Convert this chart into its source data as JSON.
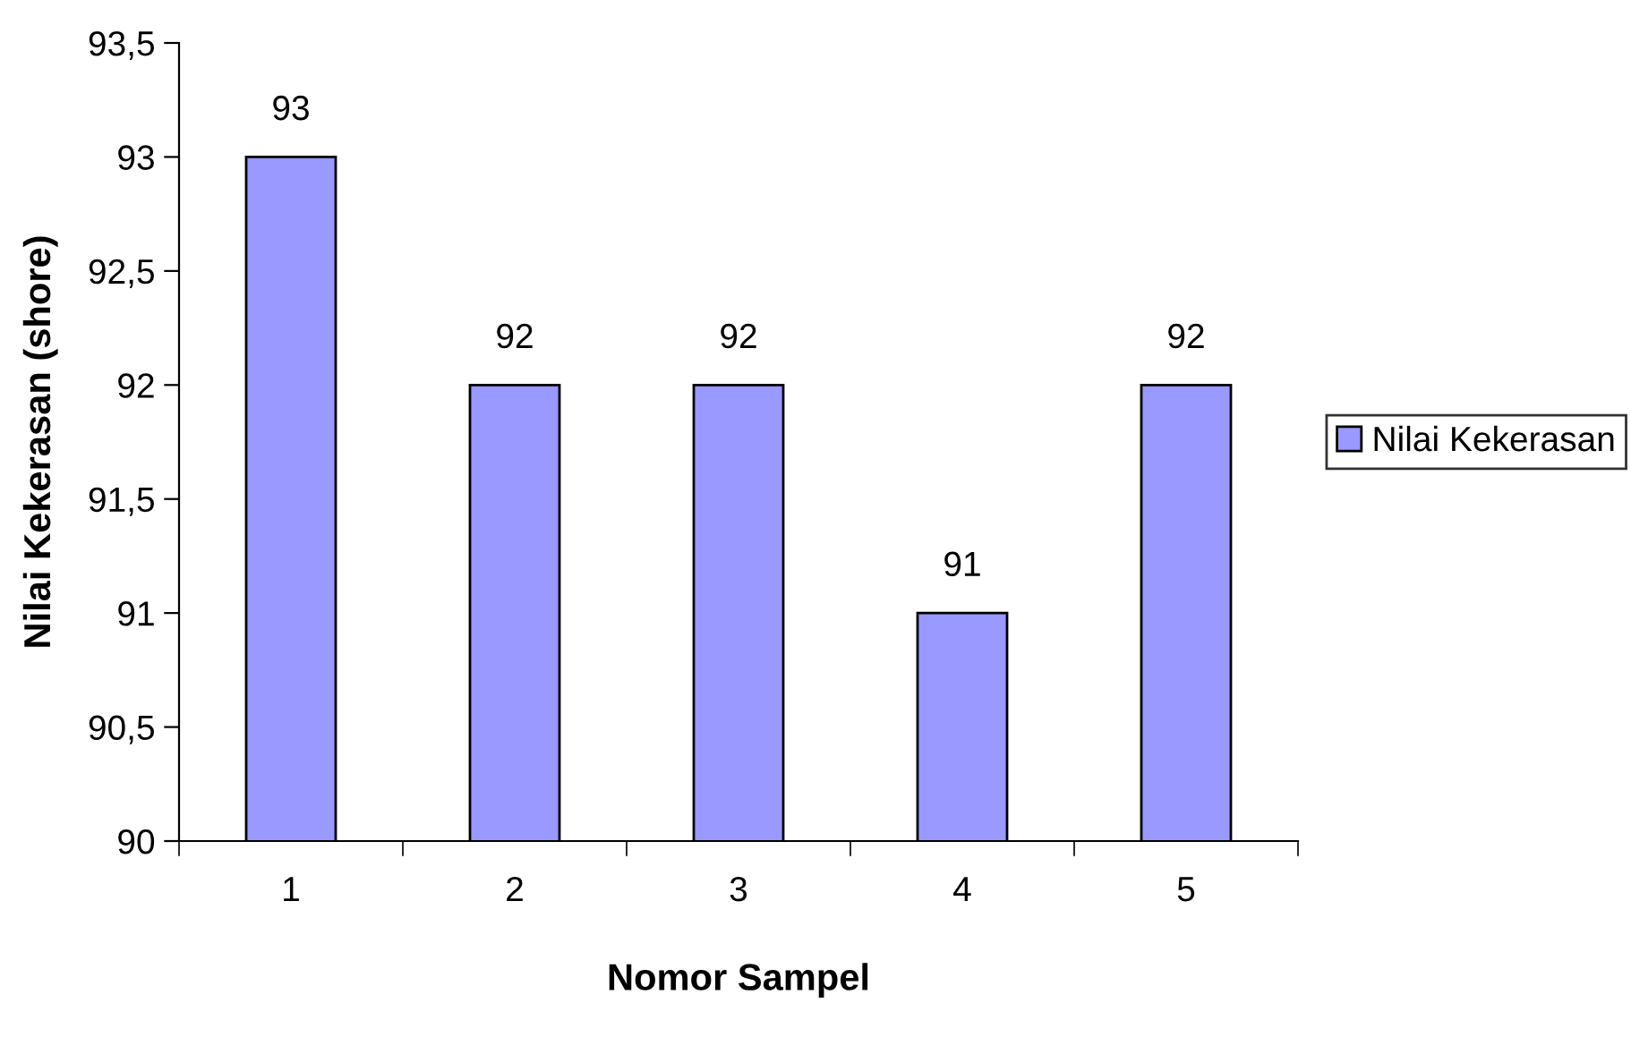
{
  "chart_data": {
    "type": "bar",
    "xlabel": "Nomor Sampel",
    "ylabel": "Nilai Kekerasan (shore)",
    "categories": [
      "1",
      "2",
      "3",
      "4",
      "5"
    ],
    "series": [
      {
        "name": "Nilai Kekerasan",
        "color": "#9999ff",
        "values": [
          93,
          92,
          92,
          91,
          92
        ]
      }
    ],
    "ylim": [
      90,
      93.5
    ],
    "yticks": [
      90,
      {
        "value": 90.5,
        "label": "90,5"
      },
      91,
      {
        "value": 91.5,
        "label": "91,5"
      },
      92,
      {
        "value": 92.5,
        "label": "92,5"
      },
      93,
      {
        "value": 93.5,
        "label": "93,5"
      }
    ],
    "data_labels": true,
    "grid": false,
    "legend": "right"
  }
}
